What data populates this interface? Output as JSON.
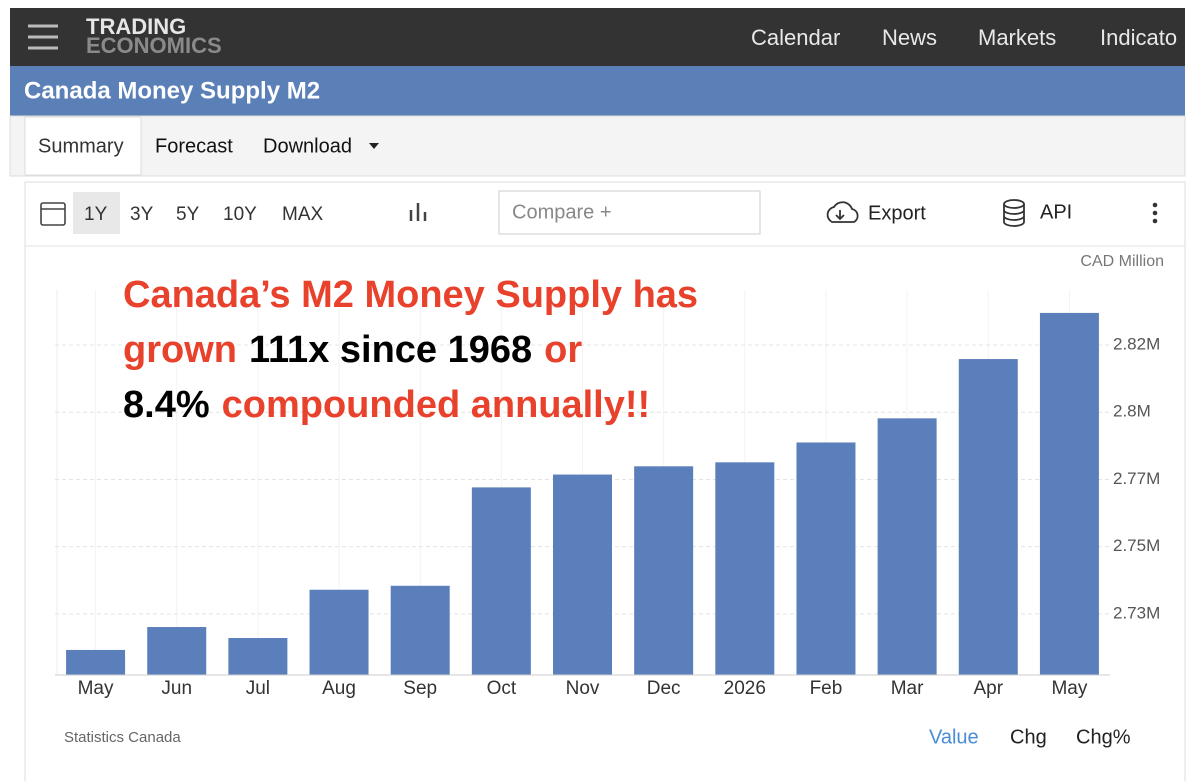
{
  "nav": {
    "logo": [
      "TRADING",
      "ECONOMICS"
    ],
    "links": [
      "Calendar",
      "News",
      "Markets",
      "Indicato"
    ]
  },
  "page_title": "Canada Money Supply M2",
  "tabs": [
    "Summary",
    "Forecast",
    "Download"
  ],
  "toolbar": {
    "ranges": [
      "1Y",
      "3Y",
      "5Y",
      "10Y",
      "MAX"
    ],
    "compare_placeholder": "Compare +",
    "export": "Export",
    "api": "API"
  },
  "chart_data": {
    "type": "bar",
    "unit_label": "CAD Million",
    "categories": [
      "May",
      "Jun",
      "Jul",
      "Aug",
      "Sep",
      "Oct",
      "Nov",
      "Dec",
      "2026",
      "Feb",
      "Mar",
      "Apr",
      "May"
    ],
    "values": [
      2718200,
      2725700,
      2722100,
      2737900,
      2739200,
      2771400,
      2775600,
      2778300,
      2779600,
      2786100,
      2794000,
      2813400,
      2828500
    ],
    "color": "#5b7fba",
    "ylim": [
      2710000,
      2836000
    ],
    "yticks": [
      {
        "value": 2730000,
        "label": "2.73M"
      },
      {
        "value": 2752000,
        "label": "2.75M"
      },
      {
        "value": 2774000,
        "label": "2.77M"
      },
      {
        "value": 2796000,
        "label": "2.8M"
      },
      {
        "value": 2818000,
        "label": "2.82M"
      }
    ],
    "grid": true,
    "annotation": [
      {
        "text": "Canada’s M2 Money Supply has",
        "color": "#e8412c"
      },
      {
        "text": "grown",
        "color": "#e8412c"
      },
      {
        "text": "111x since 1968",
        "color": "#000000"
      },
      {
        "text": "or",
        "color": "#e8412c"
      },
      {
        "text": "8.4%",
        "color": "#000000"
      },
      {
        "text": "compounded annually!!",
        "color": "#e8412c"
      }
    ]
  },
  "footer": {
    "source": "Statistics Canada",
    "views": [
      "Value",
      "Chg",
      "Chg%"
    ]
  }
}
